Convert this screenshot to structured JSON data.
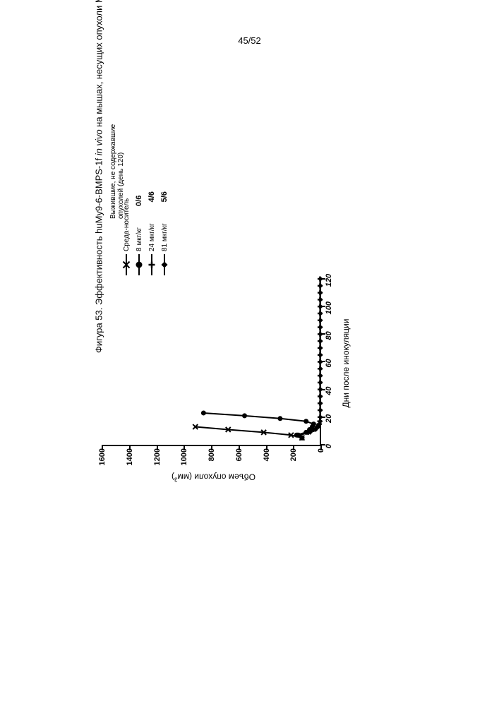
{
  "page_number": "45/52",
  "figure_title_prefix": "Фигура 53. Эффективность huMy9-6-BMPS-1f ",
  "figure_title_italic": "in vivo",
  "figure_title_suffix": " на мышах, несущих опухоли MOLM-13",
  "chart": {
    "type": "line",
    "y_axis": {
      "title": "Объем опухоли (мм",
      "title_sup": "3",
      "title_close": ")",
      "min": 0,
      "max": 1600,
      "ticks": [
        0,
        200,
        400,
        600,
        800,
        1000,
        1200,
        1400,
        1600
      ]
    },
    "x_axis": {
      "title": "Дни после инокуляции",
      "min": 0,
      "max": 120,
      "ticks": [
        0,
        20,
        40,
        60,
        80,
        100,
        120
      ]
    },
    "series": [
      {
        "name": "Среда-носитель",
        "marker": "x",
        "color": "#000000",
        "data": [
          [
            5,
            140
          ],
          [
            7,
            220
          ],
          [
            9,
            420
          ],
          [
            11,
            680
          ],
          [
            13,
            920
          ]
        ]
      },
      {
        "name": "8 мкг/кг",
        "marker": "circle",
        "color": "#000000",
        "data": [
          [
            5,
            140
          ],
          [
            7,
            180
          ],
          [
            9,
            110
          ],
          [
            11,
            85
          ],
          [
            13,
            65
          ],
          [
            15,
            55
          ],
          [
            17,
            110
          ],
          [
            19,
            300
          ],
          [
            21,
            560
          ],
          [
            23,
            860
          ]
        ]
      },
      {
        "name": "24 мкг/кг",
        "marker": "plus",
        "color": "#000000",
        "data": [
          [
            5,
            140
          ],
          [
            7,
            170
          ],
          [
            9,
            95
          ],
          [
            11,
            55
          ],
          [
            13,
            30
          ],
          [
            15,
            15
          ],
          [
            17,
            10
          ],
          [
            20,
            8
          ],
          [
            25,
            8
          ],
          [
            30,
            8
          ],
          [
            35,
            8
          ],
          [
            40,
            8
          ],
          [
            45,
            8
          ],
          [
            50,
            8
          ],
          [
            55,
            8
          ],
          [
            60,
            8
          ],
          [
            65,
            8
          ],
          [
            70,
            8
          ],
          [
            75,
            8
          ],
          [
            80,
            8
          ],
          [
            85,
            8
          ],
          [
            90,
            8
          ],
          [
            95,
            8
          ],
          [
            100,
            8
          ],
          [
            105,
            8
          ],
          [
            110,
            8
          ],
          [
            115,
            8
          ],
          [
            120,
            8
          ]
        ]
      },
      {
        "name": "81 мкг/кг",
        "marker": "diamond",
        "color": "#000000",
        "data": [
          [
            5,
            140
          ],
          [
            7,
            160
          ],
          [
            9,
            80
          ],
          [
            11,
            40
          ],
          [
            13,
            20
          ],
          [
            15,
            10
          ],
          [
            17,
            6
          ],
          [
            20,
            5
          ],
          [
            25,
            5
          ],
          [
            30,
            5
          ],
          [
            35,
            5
          ],
          [
            40,
            5
          ],
          [
            45,
            5
          ],
          [
            50,
            5
          ],
          [
            55,
            5
          ],
          [
            60,
            5
          ],
          [
            65,
            5
          ],
          [
            70,
            5
          ],
          [
            75,
            5
          ],
          [
            80,
            5
          ],
          [
            85,
            5
          ],
          [
            90,
            5
          ],
          [
            95,
            5
          ],
          [
            100,
            5
          ],
          [
            105,
            5
          ],
          [
            110,
            5
          ],
          [
            115,
            5
          ],
          [
            120,
            5
          ]
        ]
      }
    ],
    "legend_header_line1": "Выжившие, не содержавшие",
    "legend_header_line2": "опухолей (день 120)",
    "stats": [
      "",
      "0/6",
      "4/6",
      "5/6"
    ],
    "background_color": "#ffffff",
    "axis_color": "#000000",
    "line_width": 2
  }
}
